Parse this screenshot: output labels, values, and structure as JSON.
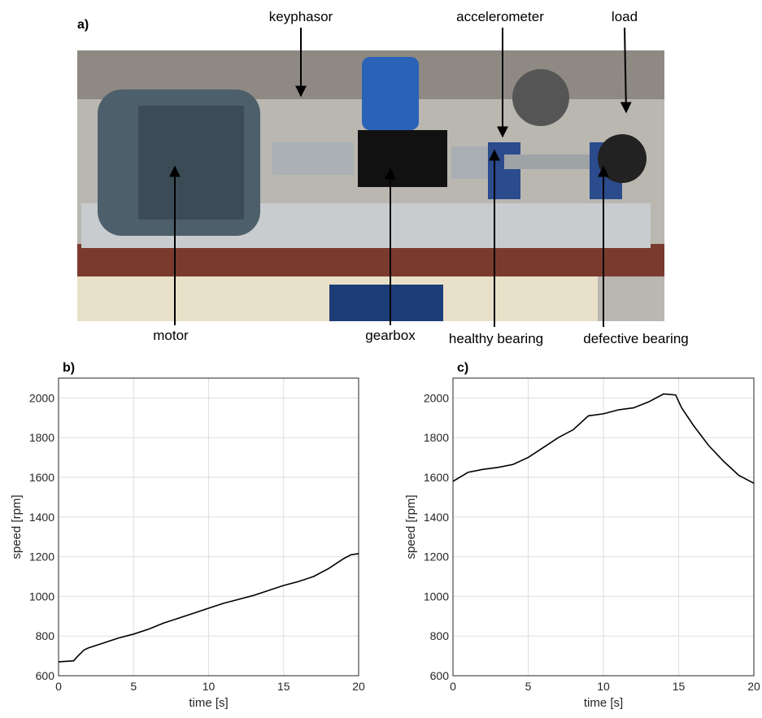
{
  "photo": {
    "panel_label": "a)",
    "labels": [
      "keyphasor",
      "accelerometer",
      "load",
      "motor",
      "gearbox",
      "healthy bearing",
      "defective bearing"
    ]
  },
  "chart_data": [
    {
      "type": "line",
      "panel_label": "b)",
      "xlabel": "time [s]",
      "ylabel": "speed [rpm]",
      "x": [
        0,
        1,
        1.3,
        1.7,
        2,
        3,
        4,
        5,
        6,
        7,
        8,
        9,
        10,
        11,
        12,
        13,
        14,
        15,
        16,
        17,
        18,
        19,
        19.5,
        20
      ],
      "values": [
        670,
        675,
        700,
        730,
        740,
        765,
        790,
        810,
        835,
        865,
        890,
        915,
        940,
        965,
        985,
        1005,
        1030,
        1055,
        1075,
        1100,
        1140,
        1190,
        1210,
        1215
      ],
      "color": "#000000",
      "xlim": [
        0,
        20
      ],
      "xticks": [
        0,
        5,
        10,
        15,
        20
      ],
      "ylim": [
        600,
        2100
      ],
      "yticks": [
        600,
        800,
        1000,
        1200,
        1400,
        1600,
        1800,
        2000
      ],
      "grid": true
    },
    {
      "type": "line",
      "panel_label": "c)",
      "xlabel": "time [s]",
      "ylabel": "speed [rpm]",
      "x": [
        0,
        1,
        2,
        3,
        4,
        5,
        6,
        7,
        8,
        9,
        10,
        11,
        12,
        13,
        14,
        14.8,
        15.2,
        16,
        17,
        18,
        19,
        20
      ],
      "values": [
        1580,
        1625,
        1640,
        1650,
        1665,
        1700,
        1750,
        1800,
        1840,
        1910,
        1920,
        1940,
        1950,
        1980,
        2020,
        2015,
        1950,
        1860,
        1760,
        1680,
        1610,
        1570
      ],
      "color": "#000000",
      "xlim": [
        0,
        20
      ],
      "xticks": [
        0,
        5,
        10,
        15,
        20
      ],
      "ylim": [
        600,
        2100
      ],
      "yticks": [
        600,
        800,
        1000,
        1200,
        1400,
        1600,
        1800,
        2000
      ],
      "grid": true
    }
  ]
}
